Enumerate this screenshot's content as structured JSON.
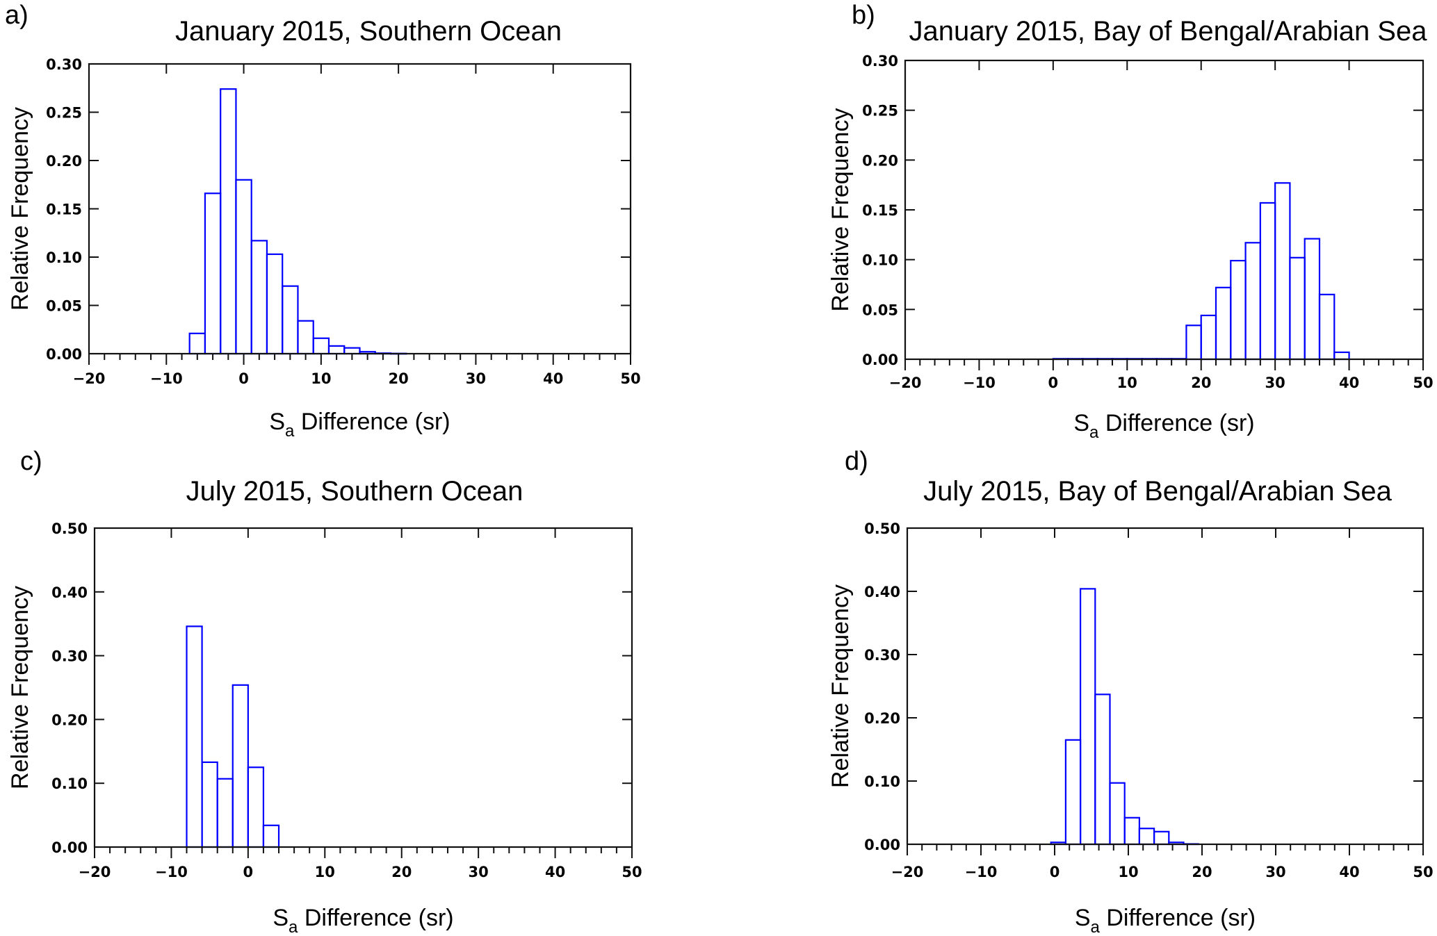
{
  "bar_color": "#0000ff",
  "chart_data": [
    {
      "type": "bar",
      "panel_label": "a)",
      "title": "January 2015, Southern Ocean",
      "ylabel": "Relative Frequency",
      "xlabel": {
        "main": "S",
        "sub": "a",
        "rest": " Difference (sr)"
      },
      "xlim": [
        -20,
        50
      ],
      "ylim": [
        0,
        0.3
      ],
      "xticks": [
        "−20",
        "−10",
        "0",
        "10",
        "20",
        "30",
        "40",
        "50"
      ],
      "yticks": [
        "0.00",
        "0.05",
        "0.10",
        "0.15",
        "0.20",
        "0.25",
        "0.30"
      ],
      "bin_width": 2,
      "bin_centers": [
        -6,
        -4,
        -2,
        0,
        2,
        4,
        6,
        8,
        10,
        12,
        14,
        16,
        18,
        20
      ],
      "values": [
        0.021,
        0.166,
        0.274,
        0.18,
        0.117,
        0.103,
        0.07,
        0.034,
        0.016,
        0.008,
        0.006,
        0.002,
        0.0005,
        0.0002
      ]
    },
    {
      "type": "bar",
      "panel_label": "b)",
      "title": "January 2015, Bay of Bengal/Arabian Sea",
      "ylabel": "Relative Frequency",
      "xlabel": {
        "main": "S",
        "sub": "a",
        "rest": " Difference (sr)"
      },
      "xlim": [
        -20,
        50
      ],
      "ylim": [
        0,
        0.3
      ],
      "xticks": [
        "−20",
        "−10",
        "0",
        "10",
        "20",
        "30",
        "40",
        "50"
      ],
      "yticks": [
        "0.00",
        "0.05",
        "0.10",
        "0.15",
        "0.20",
        "0.25",
        "0.30"
      ],
      "bin_width": 2,
      "bin_centers": [
        1,
        3,
        5,
        7,
        9,
        11,
        13,
        15,
        17,
        19,
        21,
        23,
        25,
        27,
        29,
        31,
        33,
        35,
        37,
        39
      ],
      "values": [
        0.0005,
        0.0005,
        0.0005,
        0.0005,
        0.0005,
        0.0005,
        0.0005,
        0.0005,
        0.0005,
        0.034,
        0.044,
        0.072,
        0.099,
        0.117,
        0.157,
        0.177,
        0.102,
        0.121,
        0.065,
        0.007
      ]
    },
    {
      "type": "bar",
      "panel_label": "c)",
      "title": "July 2015, Southern Ocean",
      "ylabel": "Relative Frequency",
      "xlabel": {
        "main": "S",
        "sub": "a",
        "rest": " Difference (sr)"
      },
      "xlim": [
        -20,
        50
      ],
      "ylim": [
        0,
        0.5
      ],
      "xticks": [
        "−20",
        "−10",
        "0",
        "10",
        "20",
        "30",
        "40",
        "50"
      ],
      "yticks": [
        "0.00",
        "0.10",
        "0.20",
        "0.30",
        "0.40",
        "0.50"
      ],
      "bin_width": 2,
      "bin_centers": [
        -7,
        -5,
        -3,
        -1,
        1,
        3
      ],
      "values": [
        0.346,
        0.133,
        0.107,
        0.254,
        0.125,
        0.034
      ]
    },
    {
      "type": "bar",
      "panel_label": "d)",
      "title": "July 2015, Bay of Bengal/Arabian Sea",
      "ylabel": "Relative Frequency",
      "xlabel": {
        "main": "S",
        "sub": "a",
        "rest": " Difference (sr)"
      },
      "xlim": [
        -20,
        50
      ],
      "ylim": [
        0,
        0.5
      ],
      "xticks": [
        "−20",
        "−10",
        "0",
        "10",
        "20",
        "30",
        "40",
        "50"
      ],
      "yticks": [
        "0.00",
        "0.10",
        "0.20",
        "0.30",
        "0.40",
        "0.50"
      ],
      "bin_width": 2,
      "bin_centers": [
        0.5,
        2.5,
        4.5,
        6.5,
        8.5,
        10.5,
        12.5,
        14.5,
        16.5,
        18.5
      ],
      "values": [
        0.003,
        0.165,
        0.404,
        0.237,
        0.097,
        0.042,
        0.025,
        0.02,
        0.003,
        0.0005
      ]
    }
  ]
}
